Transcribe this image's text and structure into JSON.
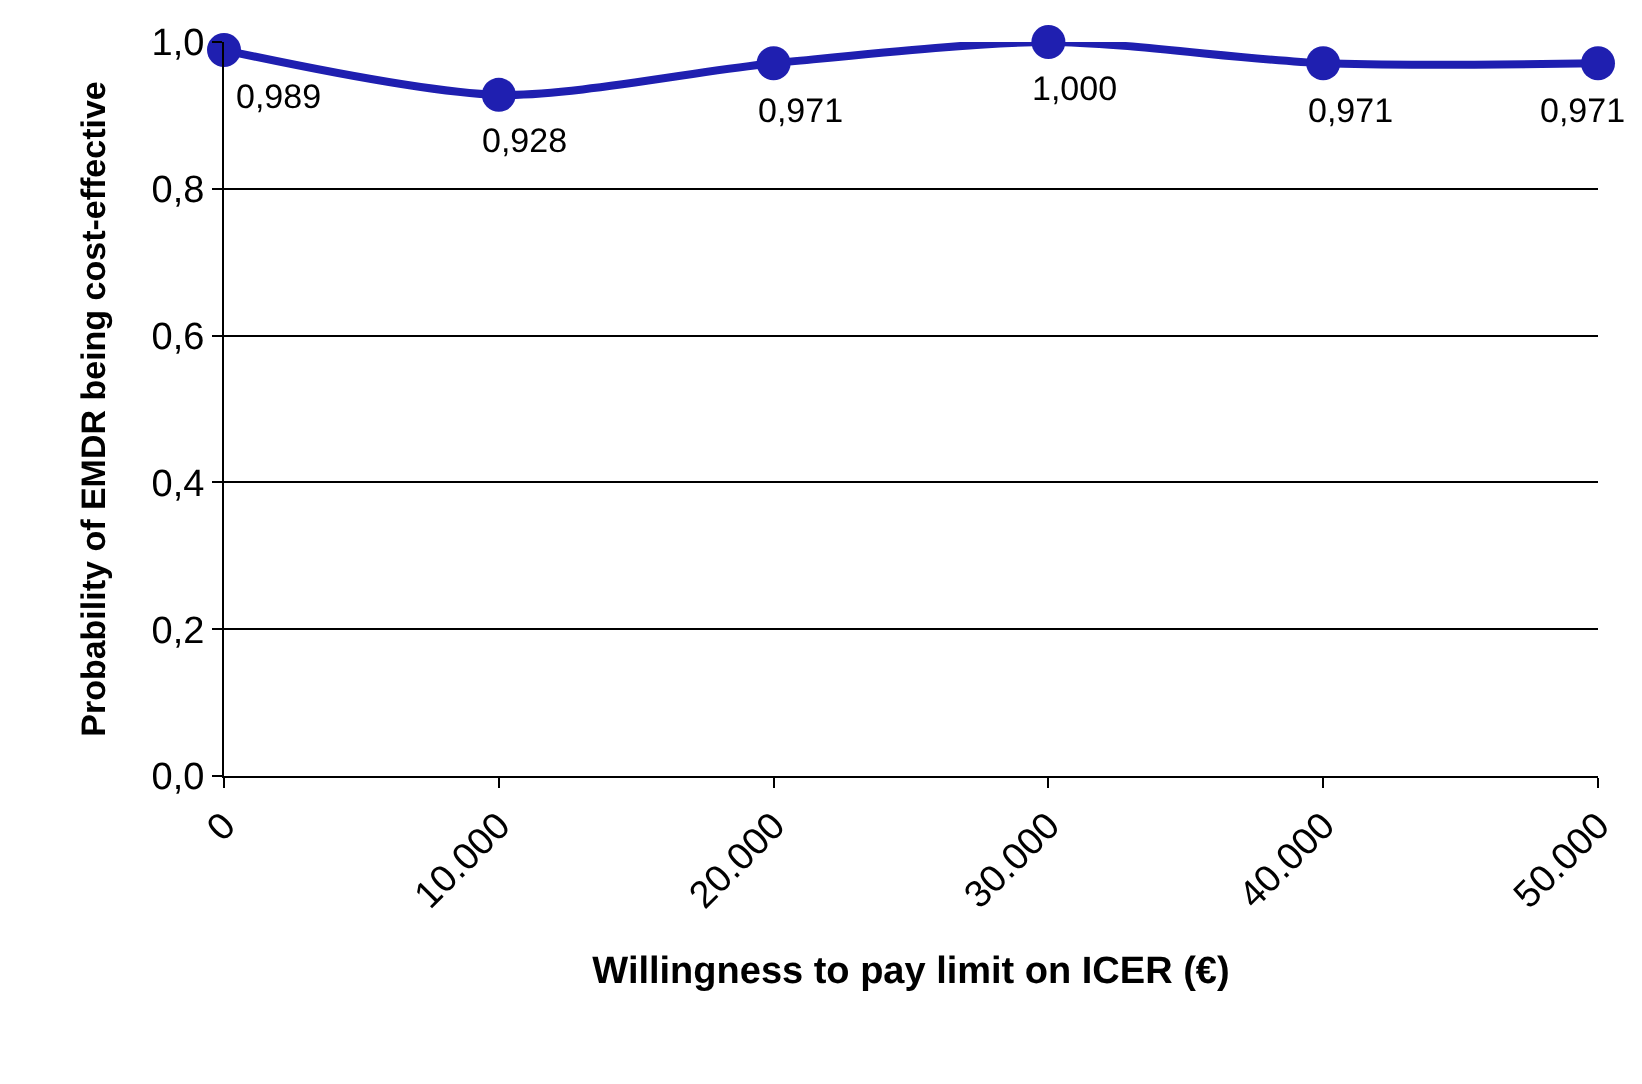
{
  "chart_data": {
    "type": "line",
    "xlabel": "Willingness to pay limit on ICER (€)",
    "ylabel": "Probability of EMDR being cost-effective",
    "x": [
      0,
      10000,
      20000,
      30000,
      40000,
      50000
    ],
    "series": [
      {
        "color": "#1f1fb0",
        "values": [
          0.989,
          0.928,
          0.971,
          1.0,
          0.971,
          0.971
        ],
        "value_labels": [
          "0,989",
          "0,928",
          "0,971",
          "1,000",
          "0,971",
          "0,971"
        ]
      }
    ],
    "xlim": [
      0,
      50000
    ],
    "xticks": [
      {
        "value": 0,
        "label": "0"
      },
      {
        "value": 10000,
        "label": "10.000"
      },
      {
        "value": 20000,
        "label": "20.000"
      },
      {
        "value": 30000,
        "label": "30.000"
      },
      {
        "value": 40000,
        "label": "40.000"
      },
      {
        "value": 50000,
        "label": "50.000"
      }
    ],
    "ylim": [
      0,
      1
    ],
    "yticks": [
      {
        "value": 0,
        "label": "0,0"
      },
      {
        "value": 0.2,
        "label": "0,2"
      },
      {
        "value": 0.4,
        "label": "0,4"
      },
      {
        "value": 0.6,
        "label": "0,6"
      },
      {
        "value": 0.8,
        "label": "0,8"
      },
      {
        "value": 1,
        "label": "1,0"
      }
    ],
    "grid": "y",
    "marker": "circle",
    "line_style": "solid"
  }
}
